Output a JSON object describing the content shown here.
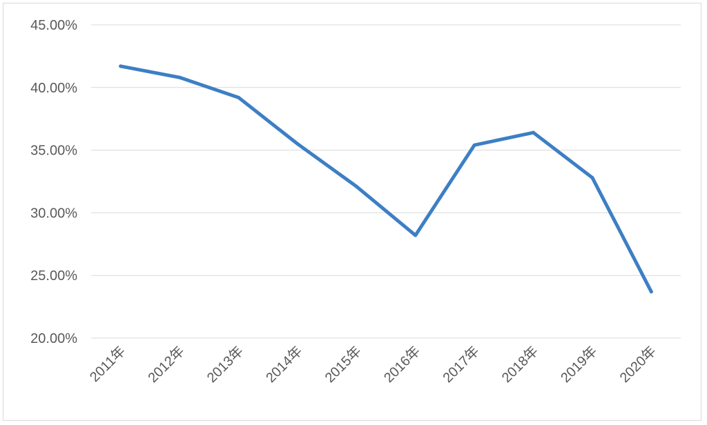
{
  "chart_data": {
    "type": "line",
    "categories": [
      "2011年",
      "2012年",
      "2013年",
      "2014年",
      "2015年",
      "2016年",
      "2017年",
      "2018年",
      "2019年",
      "2020年"
    ],
    "series": [
      {
        "values": [
          41.7,
          40.8,
          39.2,
          35.5,
          32.1,
          28.2,
          35.4,
          36.4,
          32.8,
          23.7
        ]
      }
    ],
    "ylim": [
      20,
      45
    ],
    "yticks": [
      20,
      25,
      30,
      35,
      40,
      45
    ],
    "ytick_format": "%",
    "ytick_decimals": 2,
    "grid": true,
    "legend": "none",
    "colors": {
      "line": "#3d7fc4",
      "grid": "#d9d9d9",
      "text": "#595959",
      "border": "#d9d9d9"
    }
  }
}
